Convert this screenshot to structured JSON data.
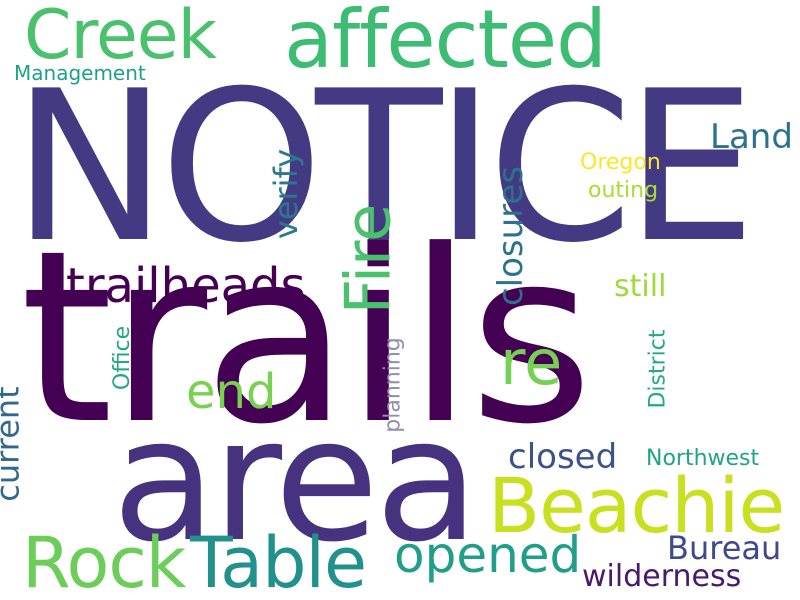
{
  "words": [
    {
      "text": "NOTICE",
      "color": "#443a83"
    },
    {
      "text": "trails",
      "color": "#440154"
    },
    {
      "text": "area",
      "color": "#46327e"
    },
    {
      "text": "affected",
      "color": "#3dbc74"
    },
    {
      "text": "Creek",
      "color": "#4ac16d"
    },
    {
      "text": "Beachie",
      "color": "#c8e020"
    },
    {
      "text": "Table",
      "color": "#21918c"
    },
    {
      "text": "Rock",
      "color": "#6ccd5a"
    },
    {
      "text": "opened",
      "color": "#1f9e89"
    },
    {
      "text": "Fire",
      "color": "#4ac16d"
    },
    {
      "text": "trailheads",
      "color": "#440154"
    },
    {
      "text": "re",
      "color": "#75d054"
    },
    {
      "text": "end",
      "color": "#7ad151"
    },
    {
      "text": "closures",
      "color": "#2c728e"
    },
    {
      "text": "verify",
      "color": "#2a788e"
    },
    {
      "text": "Land",
      "color": "#2c718e"
    },
    {
      "text": "closed",
      "color": "#3b528b"
    },
    {
      "text": "current",
      "color": "#31688e"
    },
    {
      "text": "Bureau",
      "color": "#3e4a89"
    },
    {
      "text": "wilderness",
      "color": "#481a6c"
    },
    {
      "text": "still",
      "color": "#a0da39"
    },
    {
      "text": "Oregon",
      "color": "#fde725"
    },
    {
      "text": "outing",
      "color": "#a8db34"
    },
    {
      "text": "Management",
      "color": "#1fa187"
    },
    {
      "text": "Office",
      "color": "#22a884"
    },
    {
      "text": "planning",
      "color": "#8f8fae"
    },
    {
      "text": "District",
      "color": "#24aa83"
    },
    {
      "text": "Northwest",
      "color": "#20a386"
    }
  ]
}
